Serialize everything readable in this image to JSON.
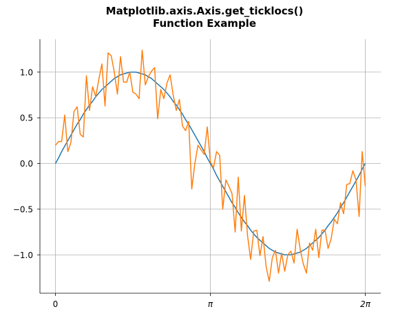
{
  "chart_data": {
    "type": "line",
    "title_lines": [
      "Matplotlib.axis.Axis.get_ticklocs()",
      "Function Example"
    ],
    "xlabel": "",
    "ylabel": "",
    "xlim": [
      -0.31416,
      6.59734
    ],
    "ylim": [
      -1.42,
      1.36
    ],
    "x_ticks": [
      {
        "value": 0,
        "label": "0"
      },
      {
        "value": 3.14159,
        "label": "π"
      },
      {
        "value": 6.28319,
        "label": "2π"
      }
    ],
    "y_ticks": [
      {
        "value": 1.0,
        "label": "1.0"
      },
      {
        "value": 0.5,
        "label": "0.5"
      },
      {
        "value": 0.0,
        "label": "0.0"
      },
      {
        "value": -0.5,
        "label": "−0.5"
      },
      {
        "value": -1.0,
        "label": "−1.0"
      }
    ],
    "grid": true,
    "colors": {
      "smooth": "#1f77b4",
      "noisy": "#ff7f0e",
      "grid": "#b0b0b0",
      "axis": "#000000"
    },
    "series": [
      {
        "x_range": [
          0,
          6.28319
        ],
        "values": [
          0.0,
          0.06,
          0.13,
          0.19,
          0.25,
          0.31,
          0.37,
          0.43,
          0.48,
          0.54,
          0.59,
          0.64,
          0.68,
          0.73,
          0.77,
          0.81,
          0.84,
          0.87,
          0.9,
          0.93,
          0.95,
          0.97,
          0.98,
          0.99,
          1.0,
          1.0,
          1.0,
          0.99,
          0.98,
          0.97,
          0.95,
          0.93,
          0.9,
          0.87,
          0.84,
          0.81,
          0.77,
          0.73,
          0.68,
          0.64,
          0.59,
          0.54,
          0.48,
          0.43,
          0.37,
          0.31,
          0.25,
          0.19,
          0.13,
          0.06,
          0.0,
          -0.06,
          -0.13,
          -0.19,
          -0.25,
          -0.31,
          -0.37,
          -0.43,
          -0.48,
          -0.54,
          -0.59,
          -0.64,
          -0.68,
          -0.73,
          -0.77,
          -0.81,
          -0.84,
          -0.87,
          -0.9,
          -0.93,
          -0.95,
          -0.97,
          -0.98,
          -0.99,
          -1.0,
          -1.0,
          -1.0,
          -0.99,
          -0.98,
          -0.97,
          -0.95,
          -0.93,
          -0.9,
          -0.87,
          -0.84,
          -0.81,
          -0.77,
          -0.73,
          -0.68,
          -0.64,
          -0.59,
          -0.54,
          -0.48,
          -0.43,
          -0.37,
          -0.31,
          -0.25,
          -0.19,
          -0.13,
          -0.06,
          0.0
        ]
      },
      {
        "x_range": [
          0,
          6.28319
        ],
        "values": [
          0.2,
          0.24,
          0.24,
          0.53,
          0.13,
          0.23,
          0.57,
          0.62,
          0.32,
          0.29,
          0.96,
          0.58,
          0.84,
          0.73,
          0.92,
          1.09,
          0.63,
          1.21,
          1.18,
          1.0,
          0.76,
          1.17,
          0.89,
          0.89,
          1.0,
          0.78,
          0.76,
          0.71,
          1.24,
          0.86,
          0.95,
          1.01,
          1.05,
          0.49,
          0.81,
          0.71,
          0.88,
          0.97,
          0.75,
          0.58,
          0.7,
          0.41,
          0.36,
          0.46,
          -0.28,
          0.0,
          0.2,
          0.15,
          0.1,
          0.4,
          0.02,
          -0.05,
          0.13,
          0.09,
          -0.5,
          -0.18,
          -0.25,
          -0.33,
          -0.75,
          -0.15,
          -0.74,
          -0.35,
          -0.79,
          -1.05,
          -0.74,
          -0.73,
          -1.01,
          -0.8,
          -1.13,
          -1.29,
          -1.03,
          -0.95,
          -1.2,
          -0.98,
          -1.18,
          -1.0,
          -0.96,
          -1.09,
          -0.72,
          -0.94,
          -1.1,
          -1.2,
          -0.87,
          -0.95,
          -0.72,
          -1.03,
          -0.73,
          -0.73,
          -0.93,
          -0.82,
          -0.61,
          -0.66,
          -0.43,
          -0.55,
          -0.23,
          -0.22,
          -0.08,
          -0.18,
          -0.58,
          0.13,
          -0.25
        ]
      }
    ]
  }
}
